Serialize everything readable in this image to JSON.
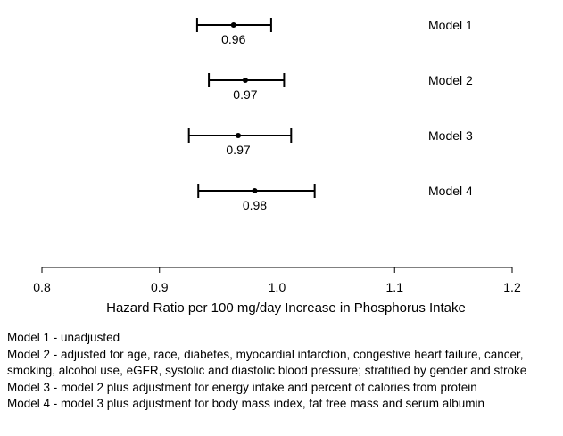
{
  "chart_data": {
    "type": "forest",
    "xlabel": "Hazard Ratio per 100 mg/day Increase in Phosphorus Intake",
    "xlim": [
      0.8,
      1.2
    ],
    "xticks": [
      0.8,
      0.9,
      1.0,
      1.1,
      1.2
    ],
    "xtick_labels": [
      "0.8",
      "0.9",
      "1.0",
      "1.1",
      "1.2"
    ],
    "reference_line": 1.0,
    "grid": false,
    "series": [
      {
        "name": "Model 1",
        "estimate": 0.963,
        "lower": 0.932,
        "upper": 0.995,
        "label": "0.96"
      },
      {
        "name": "Model 2",
        "estimate": 0.973,
        "lower": 0.942,
        "upper": 1.006,
        "label": "0.97"
      },
      {
        "name": "Model 3",
        "estimate": 0.967,
        "lower": 0.925,
        "upper": 1.012,
        "label": "0.97"
      },
      {
        "name": "Model 4",
        "estimate": 0.981,
        "lower": 0.933,
        "upper": 1.032,
        "label": "0.98"
      }
    ],
    "colors": {
      "ink": "#000000",
      "background": "#ffffff"
    }
  },
  "footnotes": [
    "Model 1 - unadjusted",
    "Model 2 - adjusted for age, race, diabetes, myocardial infarction, congestive heart failure, cancer, smoking, alcohol use, eGFR, systolic and diastolic blood pressure; stratified by gender and stroke",
    "Model 3 - model 2 plus adjustment for energy intake and percent of calories from protein",
    "Model 4 - model 3 plus adjustment for body mass index, fat free mass and serum albumin"
  ]
}
